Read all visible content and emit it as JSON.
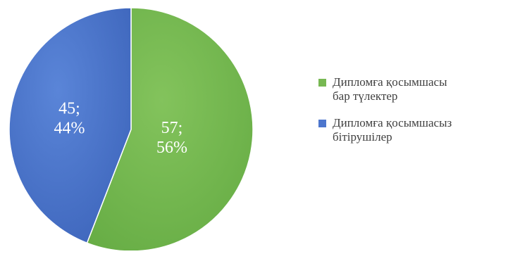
{
  "chart_data": {
    "type": "pie",
    "title": "",
    "slices": [
      {
        "label_lines": [
          "Дипломға қосымшасы",
          "бар түлектер"
        ],
        "value": 57,
        "percent": "56%",
        "color": "#77b852"
      },
      {
        "label_lines": [
          "Дипломға қосымшасыз",
          "бітірушілер"
        ],
        "value": 45,
        "percent": "44%",
        "color": "#4d76cd"
      }
    ],
    "data_label_format": "value; percent",
    "legend": "right",
    "start_angle": "12 o'clock",
    "direction": "clockwise"
  }
}
